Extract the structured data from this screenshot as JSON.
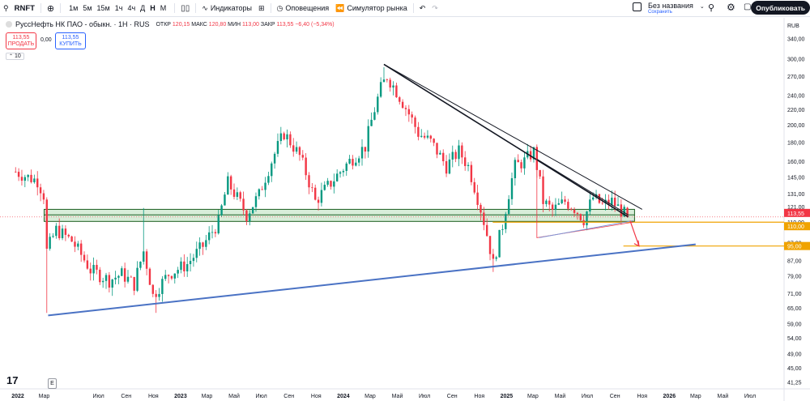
{
  "toolbar": {
    "symbol": "RNFT",
    "intervals": [
      "1м",
      "5м",
      "15м",
      "1ч",
      "4ч",
      "Д",
      "Н",
      "М"
    ],
    "active_interval": "Н",
    "indicators": "Индикаторы",
    "alerts": "Оповещения",
    "replay": "Симулятор рынка",
    "layout_name": "Без названия",
    "saved_label": "Сохранить",
    "publish": "Опубликовать"
  },
  "legend": {
    "name": "РуссНефть НК ПАО - обыкн. · 1Н · RUS",
    "o_label": "ОТКР",
    "o": "120,15",
    "h_label": "МАКС",
    "h": "120,80",
    "l_label": "МИН",
    "l": "113,00",
    "c_label": "ЗАКР",
    "c": "113,55",
    "chg": "−6,40 (−5,34%)",
    "sell_price": "113,55",
    "sell_label": "ПРОДАТЬ",
    "spread": "0,00",
    "buy_price": "113,55",
    "buy_label": "КУПИТЬ",
    "volume": "10"
  },
  "chart_data": {
    "type": "candlestick",
    "currency": "RUB",
    "y_scale": "log",
    "ylim": [
      39.5,
      360
    ],
    "y_ticks": [
      "340,00",
      "300,00",
      "270,00",
      "240,00",
      "220,00",
      "200,00",
      "180,00",
      "160,00",
      "145,00",
      "131,00",
      "121,00",
      "110,00",
      "97,00",
      "87,00",
      "79,00",
      "71,00",
      "65,00",
      "59,00",
      "54,00",
      "49,00",
      "45,00",
      "41,25"
    ],
    "x_ticks": [
      "2022",
      "Мар",
      "Июл",
      "Сен",
      "Ноя",
      "2023",
      "Мар",
      "Май",
      "Июл",
      "Сен",
      "Ноя",
      "2024",
      "Мар",
      "Май",
      "Июл",
      "Сен",
      "Ноя",
      "2025",
      "Мар",
      "Май",
      "Июл",
      "Сен",
      "Ноя",
      "2026",
      "Мар",
      "Май",
      "Июл"
    ],
    "price_badges": [
      {
        "value": 113.55,
        "label": "113,55",
        "color": "#f23645"
      },
      {
        "value": 110.0,
        "label": "110,00",
        "color": "#f0a300"
      },
      {
        "value": 95.0,
        "label": "95,00",
        "color": "#f0a300"
      }
    ],
    "anchors": [
      [
        "2021-12-27",
        150
      ],
      [
        "2022-01-24",
        145
      ],
      [
        "2022-02-14",
        142
      ],
      [
        "2022-02-28",
        130
      ],
      [
        "2022-03-07",
        92
      ],
      [
        "2022-03-28",
        105
      ],
      [
        "2022-05-02",
        98
      ],
      [
        "2022-06-13",
        82
      ],
      [
        "2022-07-25",
        77
      ],
      [
        "2022-08-22",
        80
      ],
      [
        "2022-09-19",
        75
      ],
      [
        "2022-10-10",
        92
      ],
      [
        "2022-10-31",
        70
      ],
      [
        "2022-12-05",
        80
      ],
      [
        "2023-01-16",
        85
      ],
      [
        "2023-02-20",
        95
      ],
      [
        "2023-03-27",
        110
      ],
      [
        "2023-04-17",
        140
      ],
      [
        "2023-05-29",
        115
      ],
      [
        "2023-06-26",
        130
      ],
      [
        "2023-07-24",
        160
      ],
      [
        "2023-08-21",
        190
      ],
      [
        "2023-09-25",
        165
      ],
      [
        "2023-10-30",
        125
      ],
      [
        "2023-12-04",
        140
      ],
      [
        "2024-01-15",
        160
      ],
      [
        "2024-02-19",
        175
      ],
      [
        "2024-03-25",
        250
      ],
      [
        "2024-04-08",
        270
      ],
      [
        "2024-05-13",
        230
      ],
      [
        "2024-06-17",
        190
      ],
      [
        "2024-07-15",
        180
      ],
      [
        "2024-08-19",
        155
      ],
      [
        "2024-09-16",
        170
      ],
      [
        "2024-10-07",
        155
      ],
      [
        "2024-10-28",
        128
      ],
      [
        "2024-11-18",
        102
      ],
      [
        "2024-12-02",
        85
      ],
      [
        "2024-12-23",
        108
      ],
      [
        "2025-01-20",
        155
      ],
      [
        "2025-02-10",
        160
      ],
      [
        "2025-03-03",
        170
      ],
      [
        "2025-03-24",
        125
      ],
      [
        "2025-04-14",
        118
      ],
      [
        "2025-05-12",
        125
      ],
      [
        "2025-06-02",
        120
      ],
      [
        "2025-06-23",
        112
      ],
      [
        "2025-07-14",
        128
      ],
      [
        "2025-08-04",
        122
      ],
      [
        "2025-08-25",
        125
      ],
      [
        "2025-09-29",
        113.55
      ]
    ],
    "hlines": [
      {
        "value": 110.0,
        "from": "2024-12-01",
        "to": "2026-12-31",
        "color": "#f0a300"
      },
      {
        "value": 95.0,
        "from": "2025-09-20",
        "to": "2026-12-31",
        "color": "#f0a300"
      }
    ],
    "zone": {
      "from_date": "2022-03-01",
      "to_date": "2025-10-15",
      "top": 119,
      "bottom": 110.5,
      "mid": 115
    },
    "trendlines": [
      {
        "from": [
          "2022-03-10",
          62
        ],
        "to": [
          "2026-03-01",
          96
        ],
        "color": "#4a72c4",
        "width": 2
      },
      {
        "from": [
          "2024-04-01",
          290
        ],
        "to": [
          "2025-10-01",
          113.55
        ],
        "color": "#131722",
        "width": 1.6
      },
      {
        "from": [
          "2024-04-01",
          290
        ],
        "to": [
          "2025-11-01",
          119
        ],
        "color": "#131722",
        "width": 1
      },
      {
        "from": [
          "2025-03-10",
          162
        ],
        "to": [
          "2025-10-01",
          115
        ],
        "color": "#131722",
        "width": 1
      }
    ],
    "triangle": {
      "points": [
        [
          "2025-03-10",
          170
        ],
        [
          "2025-03-10",
          100
        ],
        [
          "2025-10-12",
          110
        ]
      ],
      "color": "#f23645"
    },
    "triangle_edge": {
      "from": [
        "2025-03-15",
        100
      ],
      "to": [
        "2025-10-12",
        111
      ],
      "color": "#7e95d6"
    },
    "arrow": {
      "from": [
        "2025-10-05",
        111
      ],
      "to": [
        "2025-10-25",
        95
      ],
      "color": "#f23645"
    }
  }
}
